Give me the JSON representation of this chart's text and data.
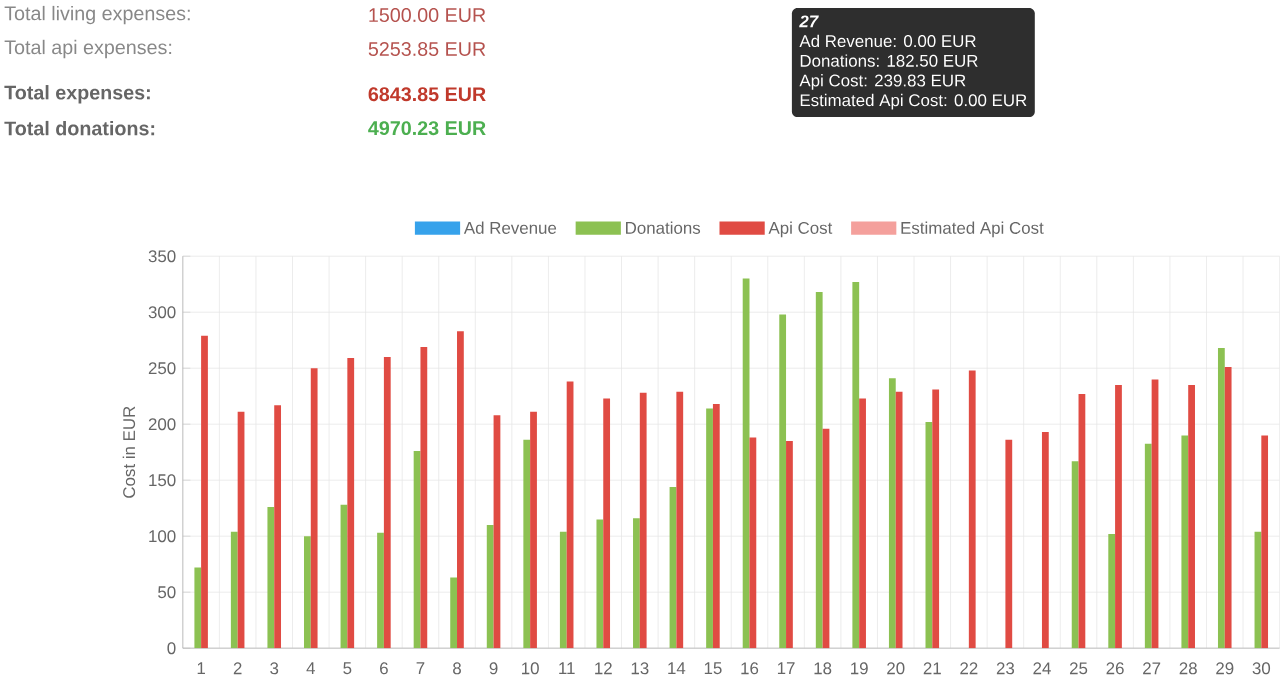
{
  "chart_data": {
    "type": "bar",
    "ylabel": "Cost in EUR",
    "categories": [
      "1",
      "2",
      "3",
      "4",
      "5",
      "6",
      "7",
      "8",
      "9",
      "10",
      "11",
      "12",
      "13",
      "14",
      "15",
      "16",
      "17",
      "18",
      "19",
      "20",
      "21",
      "22",
      "23",
      "24",
      "25",
      "26",
      "27",
      "28",
      "29",
      "30"
    ],
    "series": [
      {
        "name": "Ad Revenue",
        "color": "#36a2eb",
        "values": [
          0,
          0,
          0,
          0,
          0,
          0,
          0,
          0,
          0,
          0,
          0,
          0,
          0,
          0,
          0,
          0,
          0,
          0,
          0,
          0,
          0,
          0,
          0,
          0,
          0,
          0,
          0,
          0,
          0,
          0
        ]
      },
      {
        "name": "Donations",
        "color": "#8cc152",
        "values": [
          72,
          104,
          126,
          100,
          128,
          103,
          176,
          63,
          110,
          186,
          104,
          115,
          116,
          144,
          214,
          330,
          298,
          318,
          327,
          241,
          202,
          null,
          null,
          null,
          167,
          102,
          182.5,
          190,
          268,
          104
        ]
      },
      {
        "name": "Api Cost",
        "color": "#e04b43",
        "values": [
          279,
          211,
          217,
          250,
          259,
          260,
          269,
          283,
          208,
          211,
          238,
          223,
          228,
          229,
          218,
          188,
          185,
          196,
          223,
          229,
          231,
          248,
          186,
          193,
          227,
          235,
          239.83,
          235,
          251,
          190
        ]
      },
      {
        "name": "Estimated Api Cost",
        "color": "#f4a09c",
        "values": [
          0,
          0,
          0,
          0,
          0,
          0,
          0,
          0,
          0,
          0,
          0,
          0,
          0,
          0,
          0,
          0,
          0,
          0,
          0,
          0,
          0,
          0,
          0,
          0,
          0,
          0,
          0,
          0,
          0,
          0
        ]
      }
    ],
    "ylim": [
      0,
      350
    ],
    "yticks": [
      0,
      50,
      100,
      150,
      200,
      250,
      300,
      350
    ],
    "grid": true,
    "legend": "top",
    "annotations": [
      "Total living expenses:",
      "1500.00 EUR",
      "Total api expenses:",
      "5253.85 EUR",
      "Total expenses:",
      "6843.85 EUR",
      "Total donations:",
      "4970.23 EUR",
      "27",
      "Ad Revenue: 0.00 EUR",
      "Donations: 182.50 EUR",
      "Api Cost: 239.83 EUR",
      "Estimated Api Cost: 0.00 EUR"
    ]
  }
}
